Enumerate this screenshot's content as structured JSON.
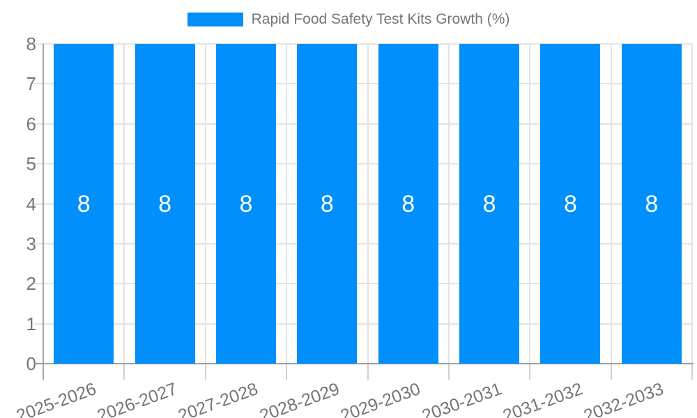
{
  "legend": {
    "position": "top",
    "items": [
      {
        "label": "Rapid Food Safety Test Kits Growth (%)",
        "color": "#008FFB"
      }
    ]
  },
  "chart_data": {
    "type": "bar",
    "title": "Rapid Food Safety Test Kits Growth (%)",
    "categories": [
      "2025-2026",
      "2026-2027",
      "2027-2028",
      "2028-2029",
      "2029-2030",
      "2030-2031",
      "2031-2032",
      "2032-2033"
    ],
    "series": [
      {
        "name": "Rapid Food Safety Test Kits Growth (%)",
        "color": "#008FFB",
        "values": [
          8,
          8,
          8,
          8,
          8,
          8,
          8,
          8
        ]
      }
    ],
    "value_labels": [
      "8",
      "8",
      "8",
      "8",
      "8",
      "8",
      "8",
      "8"
    ],
    "xlabel": "",
    "ylabel": "",
    "ylim": [
      0,
      8
    ],
    "yticks": [
      0,
      1,
      2,
      3,
      4,
      5,
      6,
      7,
      8
    ],
    "grid": true,
    "x_label_rotation_deg": -20,
    "legend_position": "top",
    "colors": {
      "bar": "#008FFB",
      "grid": "#e3e3e3",
      "axis": "#9e9e9e",
      "tick_text": "#757575",
      "value_label": "#ffffff",
      "legend_text": "#757575",
      "background": "#ffffff"
    }
  }
}
